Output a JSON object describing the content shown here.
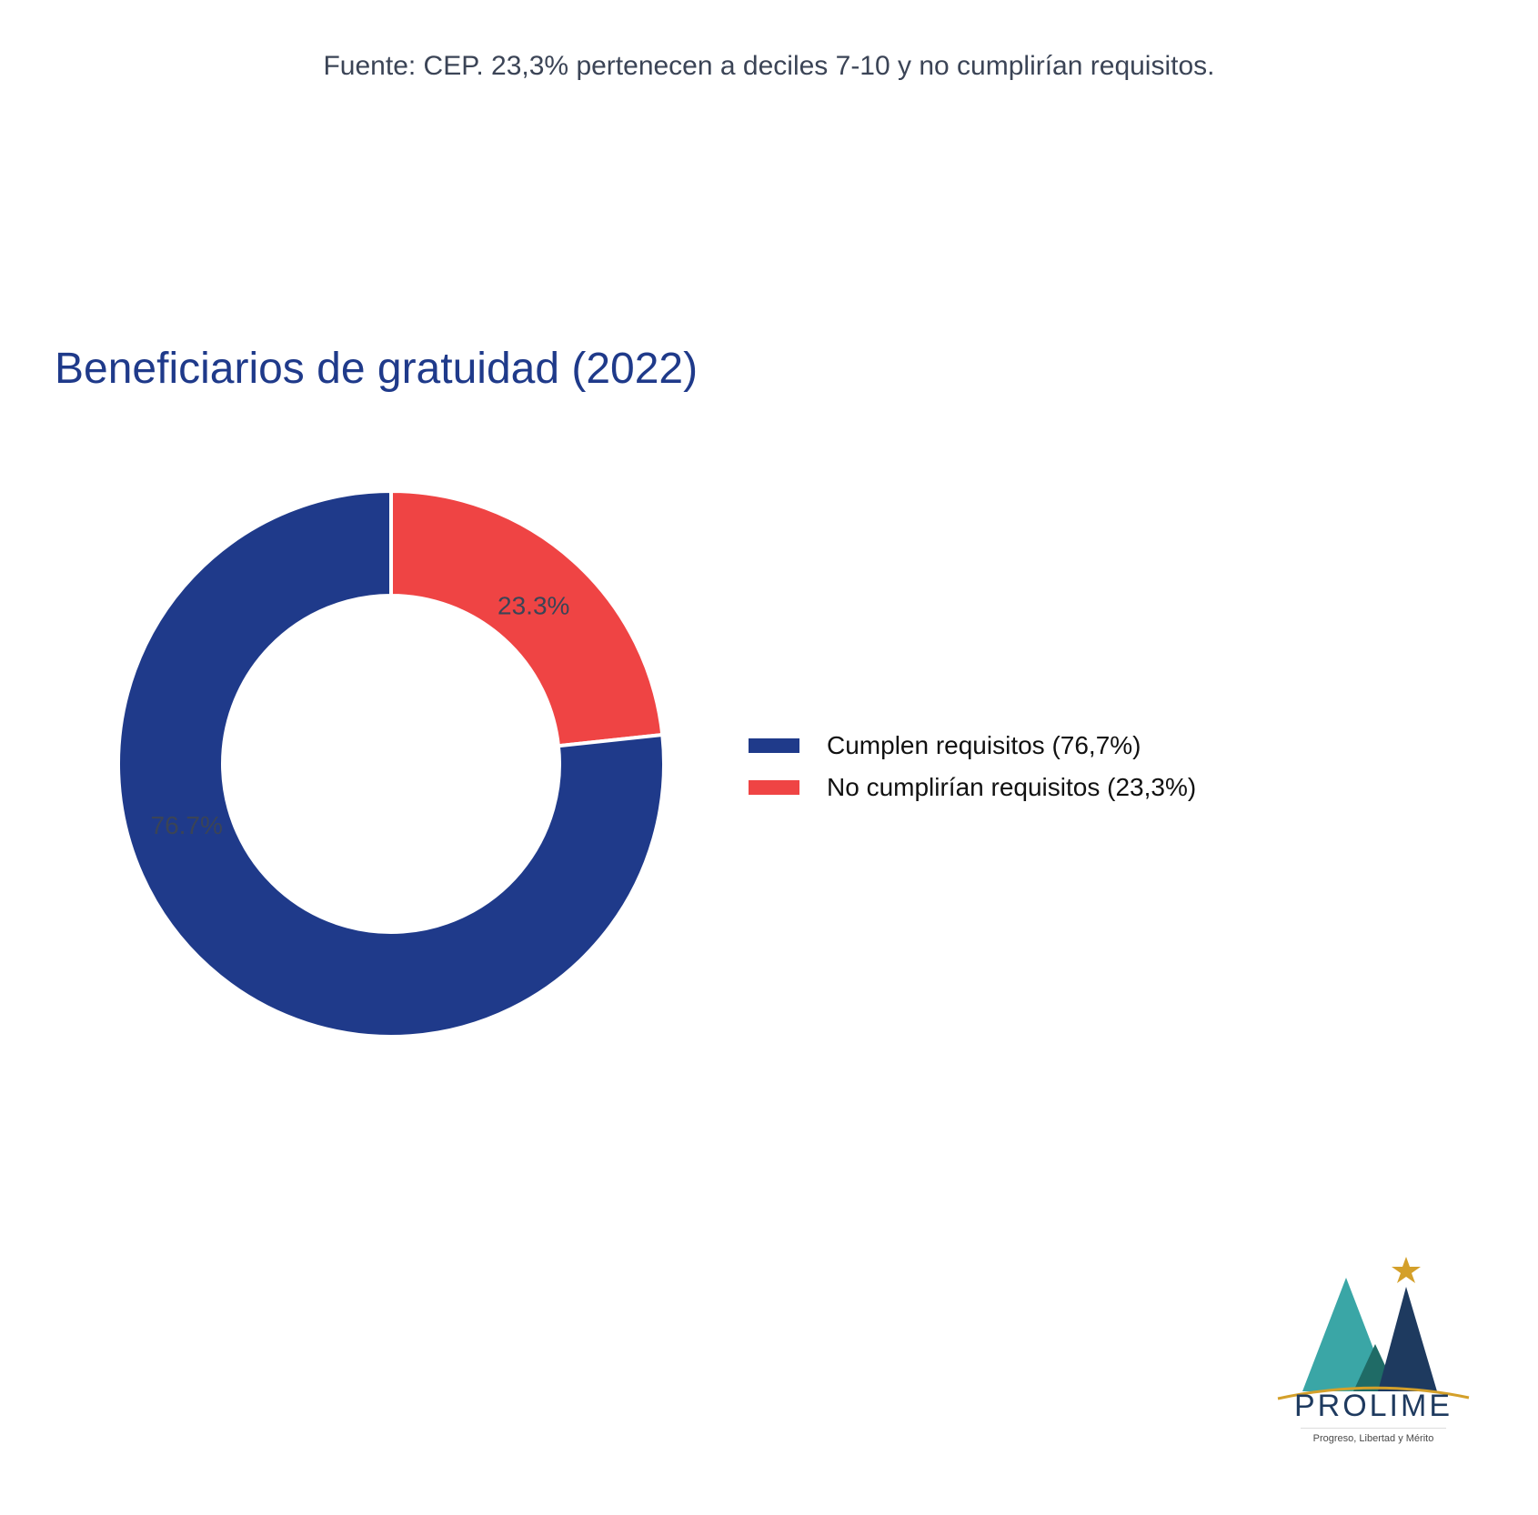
{
  "header": {
    "note": "Fuente: CEP. 23,3% pertenecen a deciles 7-10 y no cumplirían requisitos."
  },
  "chart_data": {
    "type": "pie",
    "style": "donut",
    "title": "Beneficiarios de gratuidad (2022)",
    "labels": [
      "Cumplen requisitos (76,7%)",
      "No cumplirían requisitos (23,3%)"
    ],
    "values": [
      76.7,
      23.3
    ],
    "data_labels": [
      "76.7%",
      "23.3%"
    ],
    "colors": [
      "#1f3a8a",
      "#ef4444"
    ],
    "legend_position": "right"
  },
  "logo": {
    "name": "PROLIME",
    "tagline": "Progreso, Libertad y Mérito",
    "colors": {
      "teal": "#3aa6a6",
      "dark_teal": "#1f6b66",
      "navy": "#1e3a5f",
      "gold": "#d4a02a"
    }
  }
}
